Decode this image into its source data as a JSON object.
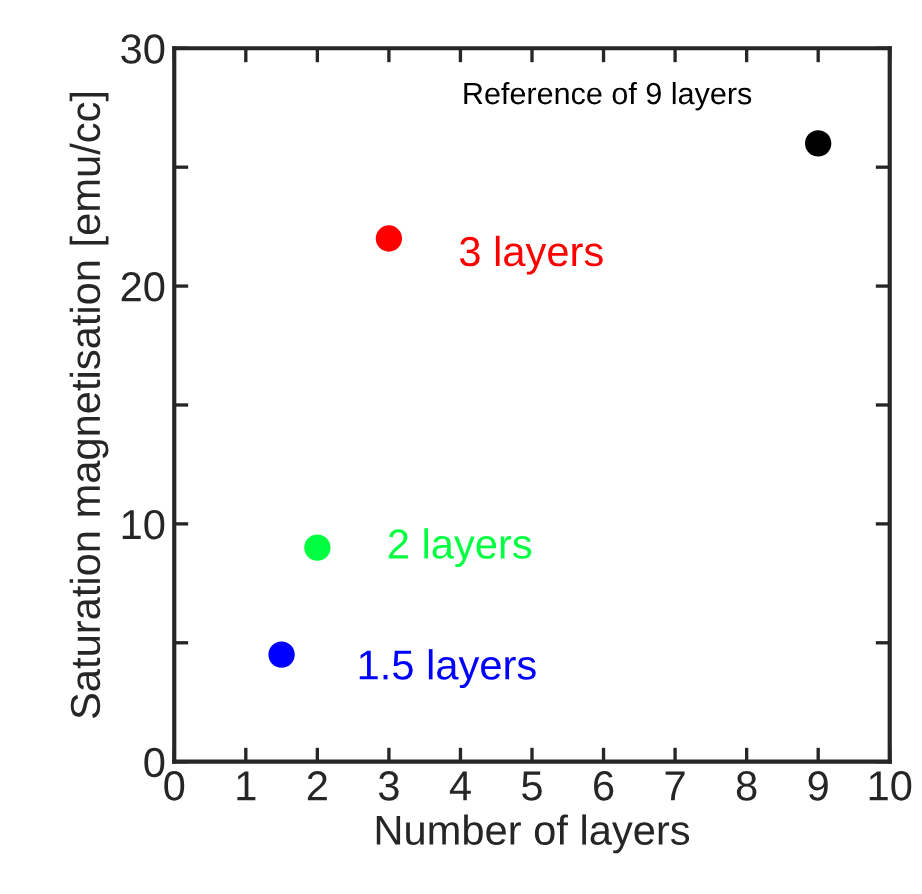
{
  "chart_data": {
    "type": "scatter",
    "xlabel": "Number of layers",
    "ylabel": "Saturation magnetisation [emu/cc]",
    "xlim": [
      0,
      10
    ],
    "xticks": [
      0,
      1,
      2,
      3,
      4,
      5,
      6,
      7,
      8,
      9,
      10
    ],
    "ylim": [
      0,
      30
    ],
    "yticks": [
      0,
      {
        "value": 5,
        "label": null
      },
      10,
      {
        "value": 15,
        "label": null
      },
      20,
      {
        "value": 25,
        "label": null
      },
      30
    ],
    "marker": "circle",
    "grid": false,
    "series": [
      {
        "name": "1.5 layers",
        "color": "#0000ff",
        "x": [
          1.5
        ],
        "values": [
          4.5
        ]
      },
      {
        "name": "2 layers",
        "color": "#00ff40",
        "x": [
          2
        ],
        "values": [
          9
        ]
      },
      {
        "name": "3 layers",
        "color": "#ff0000",
        "x": [
          3
        ],
        "values": [
          22
        ]
      },
      {
        "name": "Reference of 9 layers",
        "color": "#000000",
        "x": [
          9
        ],
        "values": [
          26
        ]
      }
    ]
  }
}
